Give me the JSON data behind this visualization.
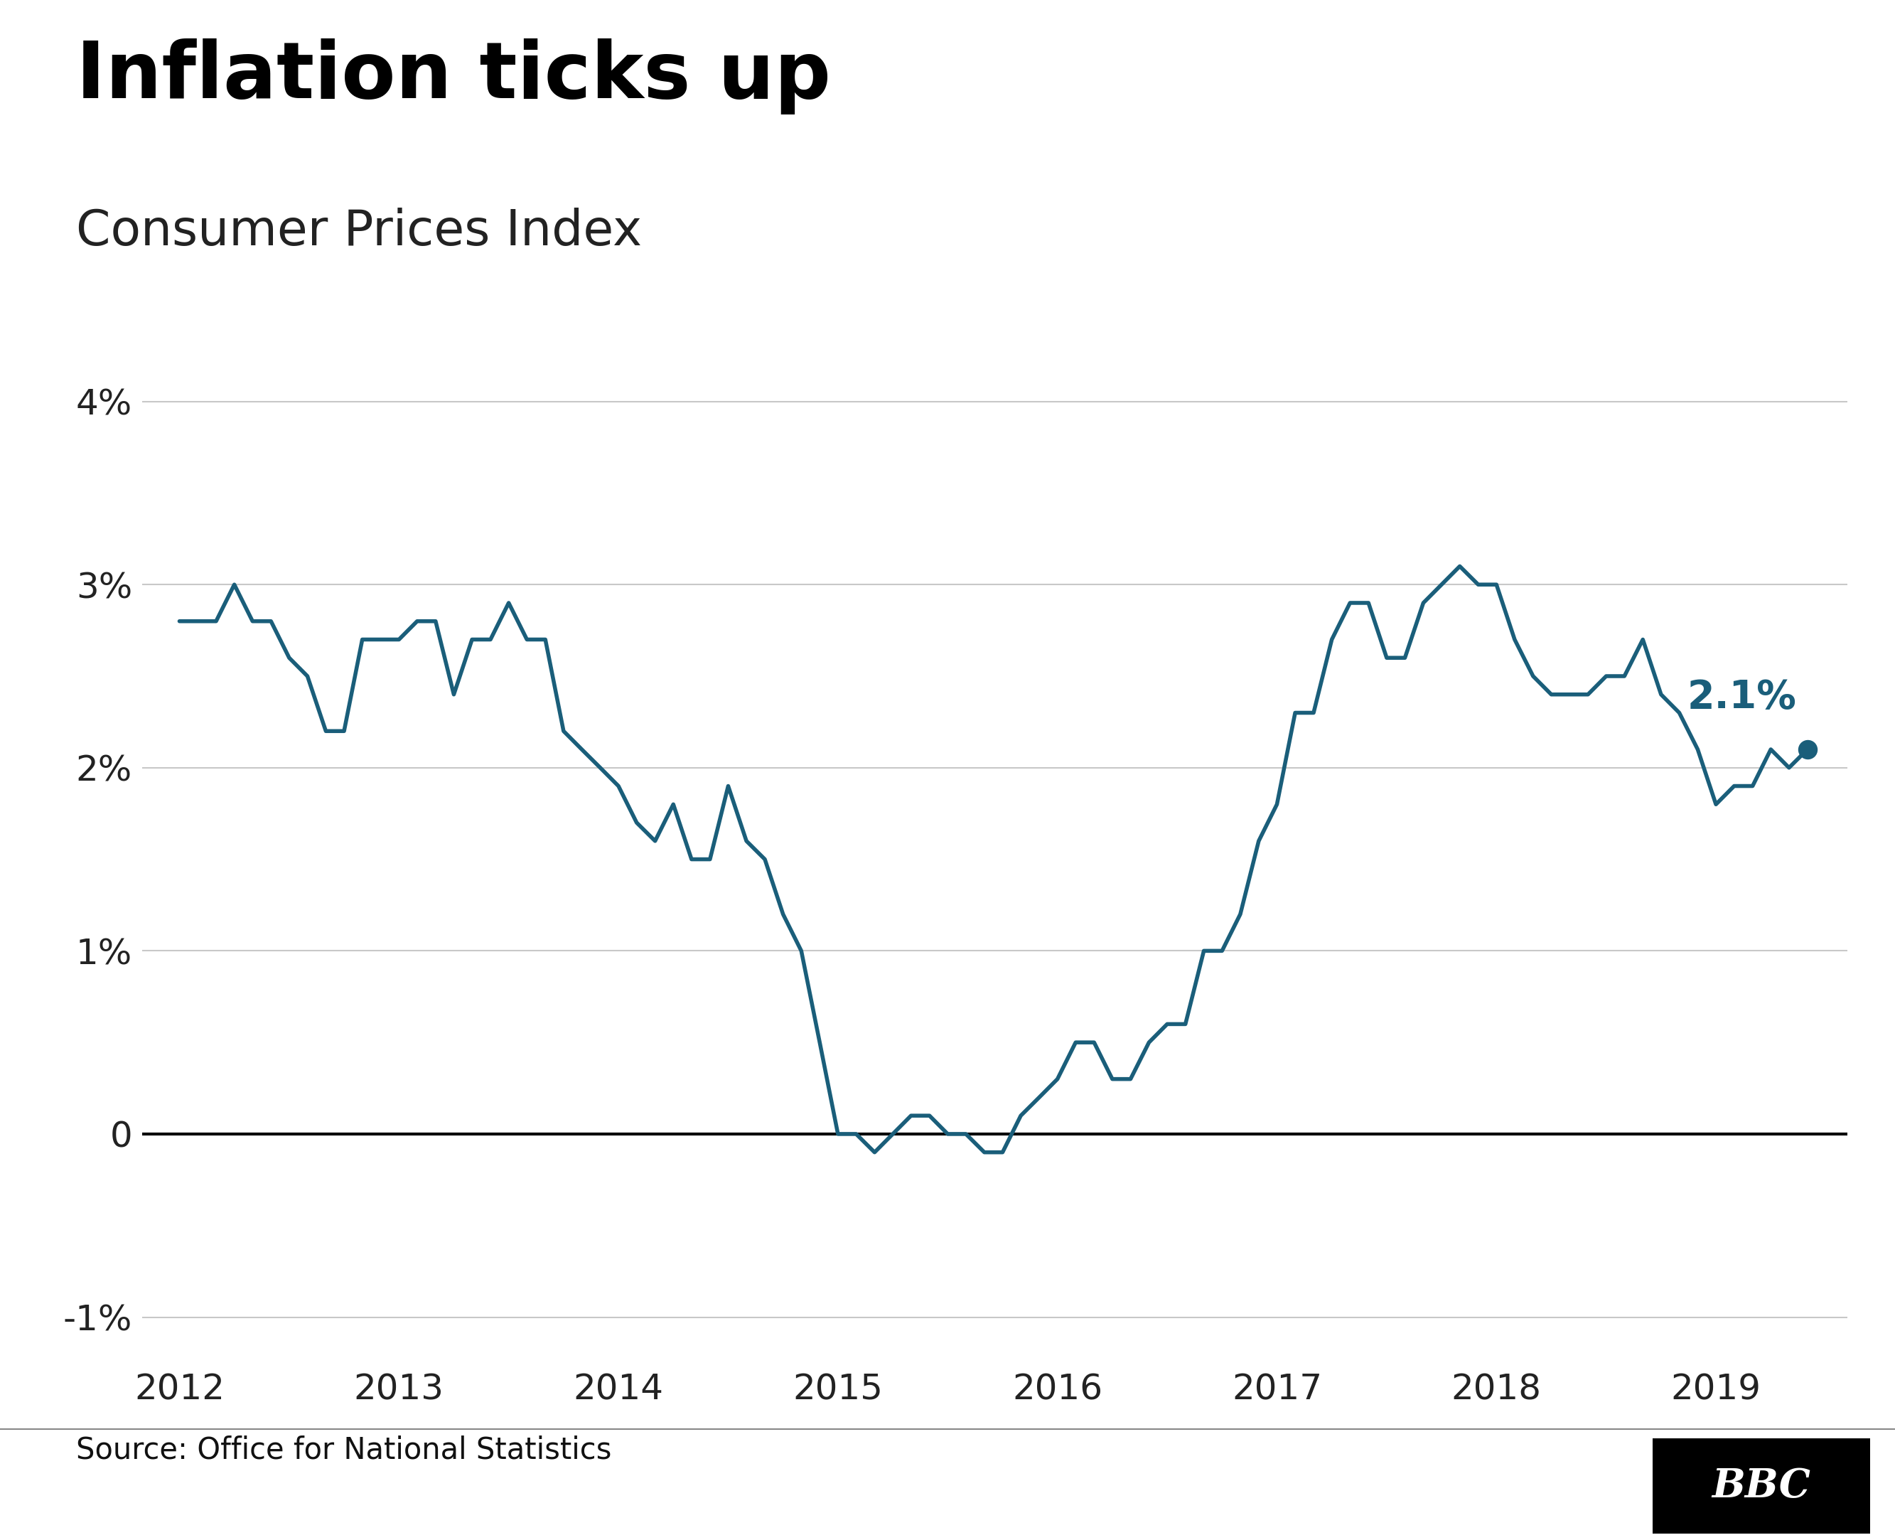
{
  "title": "Inflation ticks up",
  "subtitle": "Consumer Prices Index",
  "source": "Source: Office for National Statistics",
  "bbc_label": "BBC",
  "line_color": "#1a5e7a",
  "annotation_color": "#1a5e7a",
  "background_color": "#ffffff",
  "ylim": [
    -1.25,
    4.3
  ],
  "yticks": [
    -1,
    0,
    1,
    2,
    3,
    4
  ],
  "ytick_labels": [
    "-1%",
    "0",
    "1%",
    "2%",
    "3%",
    "4%"
  ],
  "xtick_years": [
    2012,
    2013,
    2014,
    2015,
    2016,
    2017,
    2018,
    2019
  ],
  "last_label": "2.1%",
  "data": [
    [
      2012.0,
      2.8
    ],
    [
      2012.083,
      2.8
    ],
    [
      2012.167,
      2.8
    ],
    [
      2012.25,
      3.0
    ],
    [
      2012.333,
      2.8
    ],
    [
      2012.417,
      2.8
    ],
    [
      2012.5,
      2.6
    ],
    [
      2012.583,
      2.5
    ],
    [
      2012.667,
      2.2
    ],
    [
      2012.75,
      2.2
    ],
    [
      2012.833,
      2.7
    ],
    [
      2012.917,
      2.7
    ],
    [
      2013.0,
      2.7
    ],
    [
      2013.083,
      2.8
    ],
    [
      2013.167,
      2.8
    ],
    [
      2013.25,
      2.4
    ],
    [
      2013.333,
      2.7
    ],
    [
      2013.417,
      2.7
    ],
    [
      2013.5,
      2.9
    ],
    [
      2013.583,
      2.7
    ],
    [
      2013.667,
      2.7
    ],
    [
      2013.75,
      2.2
    ],
    [
      2013.833,
      2.1
    ],
    [
      2013.917,
      2.0
    ],
    [
      2014.0,
      1.9
    ],
    [
      2014.083,
      1.7
    ],
    [
      2014.167,
      1.6
    ],
    [
      2014.25,
      1.8
    ],
    [
      2014.333,
      1.5
    ],
    [
      2014.417,
      1.5
    ],
    [
      2014.5,
      1.9
    ],
    [
      2014.583,
      1.6
    ],
    [
      2014.667,
      1.5
    ],
    [
      2014.75,
      1.2
    ],
    [
      2014.833,
      1.0
    ],
    [
      2014.917,
      0.5
    ],
    [
      2015.0,
      0.0
    ],
    [
      2015.083,
      0.0
    ],
    [
      2015.167,
      -0.1
    ],
    [
      2015.25,
      0.0
    ],
    [
      2015.333,
      0.1
    ],
    [
      2015.417,
      0.1
    ],
    [
      2015.5,
      0.0
    ],
    [
      2015.583,
      0.0
    ],
    [
      2015.667,
      -0.1
    ],
    [
      2015.75,
      -0.1
    ],
    [
      2015.833,
      0.1
    ],
    [
      2015.917,
      0.2
    ],
    [
      2016.0,
      0.3
    ],
    [
      2016.083,
      0.5
    ],
    [
      2016.167,
      0.5
    ],
    [
      2016.25,
      0.3
    ],
    [
      2016.333,
      0.3
    ],
    [
      2016.417,
      0.5
    ],
    [
      2016.5,
      0.6
    ],
    [
      2016.583,
      0.6
    ],
    [
      2016.667,
      1.0
    ],
    [
      2016.75,
      1.0
    ],
    [
      2016.833,
      1.2
    ],
    [
      2016.917,
      1.6
    ],
    [
      2017.0,
      1.8
    ],
    [
      2017.083,
      2.3
    ],
    [
      2017.167,
      2.3
    ],
    [
      2017.25,
      2.7
    ],
    [
      2017.333,
      2.9
    ],
    [
      2017.417,
      2.9
    ],
    [
      2017.5,
      2.6
    ],
    [
      2017.583,
      2.6
    ],
    [
      2017.667,
      2.9
    ],
    [
      2017.75,
      3.0
    ],
    [
      2017.833,
      3.1
    ],
    [
      2017.917,
      3.0
    ],
    [
      2018.0,
      3.0
    ],
    [
      2018.083,
      2.7
    ],
    [
      2018.167,
      2.5
    ],
    [
      2018.25,
      2.4
    ],
    [
      2018.333,
      2.4
    ],
    [
      2018.417,
      2.4
    ],
    [
      2018.5,
      2.5
    ],
    [
      2018.583,
      2.5
    ],
    [
      2018.667,
      2.7
    ],
    [
      2018.75,
      2.4
    ],
    [
      2018.833,
      2.3
    ],
    [
      2018.917,
      2.1
    ],
    [
      2019.0,
      1.8
    ],
    [
      2019.083,
      1.9
    ],
    [
      2019.167,
      1.9
    ],
    [
      2019.25,
      2.1
    ],
    [
      2019.333,
      2.0
    ],
    [
      2019.417,
      2.1
    ]
  ]
}
